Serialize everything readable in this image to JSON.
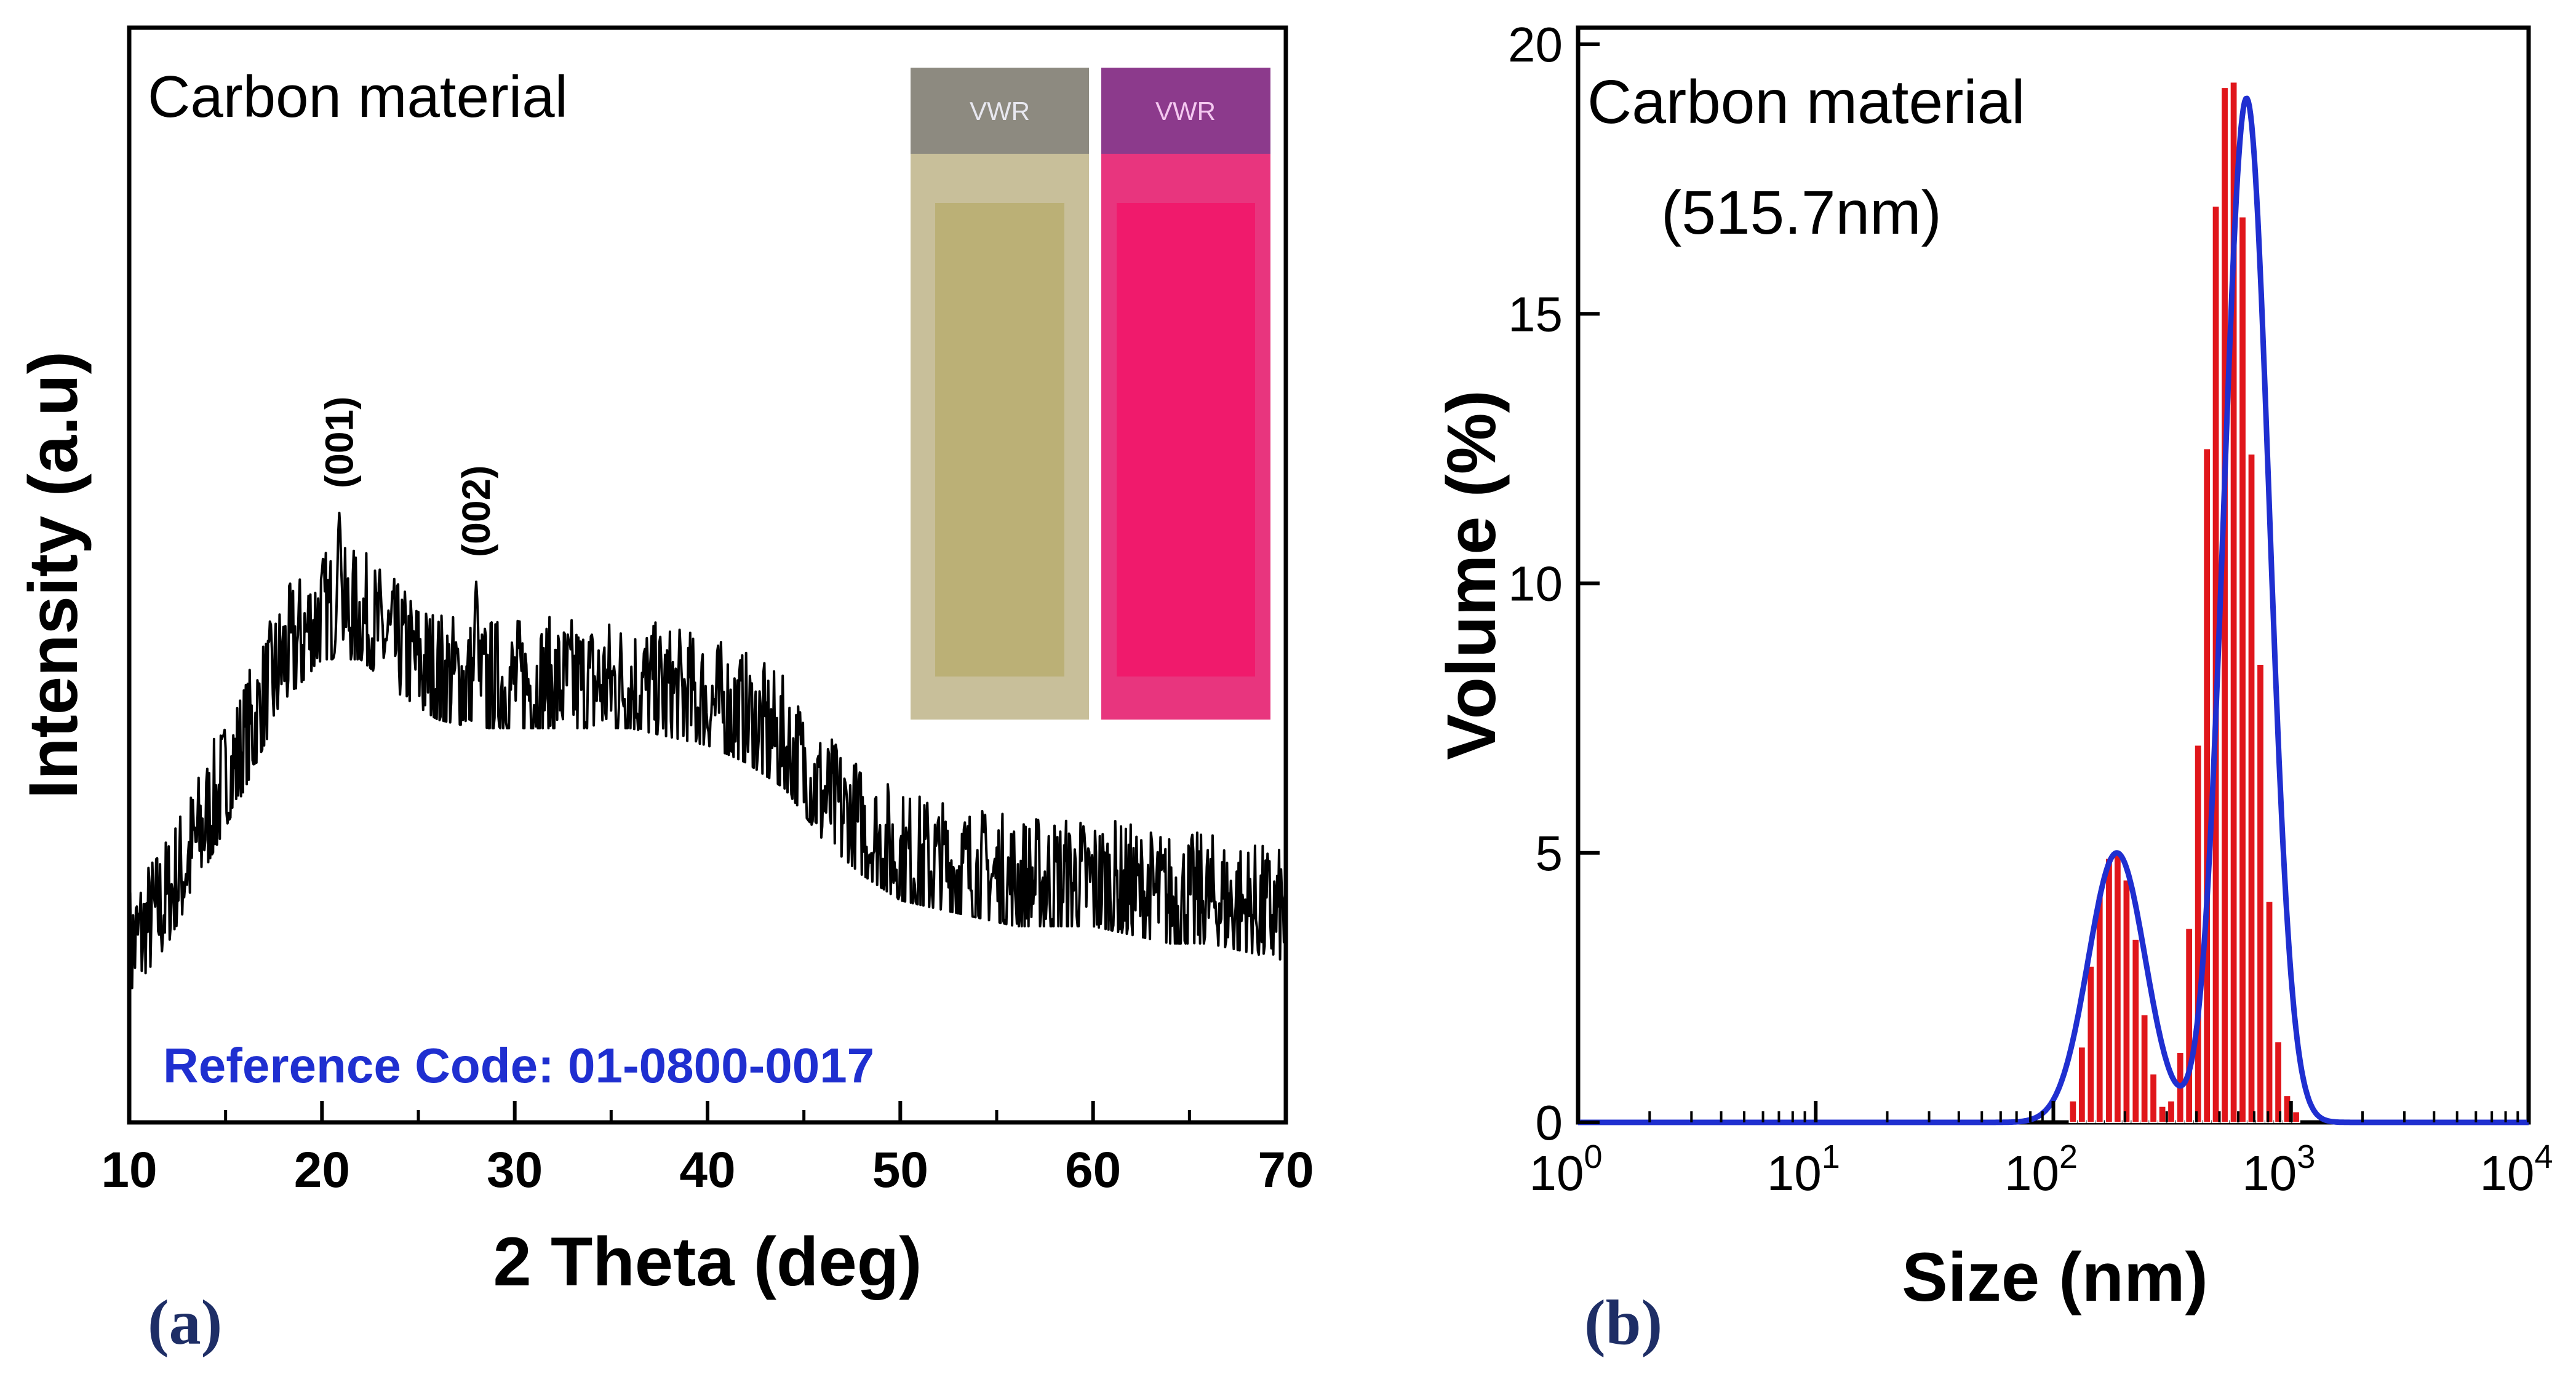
{
  "chart_data": [
    {
      "type": "line",
      "panel_label": "(a)",
      "title": "Carbon material",
      "xlabel": "2 Theta (deg)",
      "ylabel": "Intensity (a.u)",
      "xlim": [
        10,
        70
      ],
      "ylim": [
        0,
        1
      ],
      "xticks": [
        "10",
        "20",
        "30",
        "40",
        "50",
        "60",
        "70"
      ],
      "reference_code": "Reference Code: 01-0800-0017",
      "peaks": [
        {
          "label": "(001)",
          "x": 20.9,
          "y": 0.69
        },
        {
          "label": "(002)",
          "x": 28.0,
          "y": 0.61
        }
      ],
      "series": [
        {
          "name": "XRD pattern",
          "x": [
            10,
            12,
            14,
            16,
            18,
            20,
            22,
            24,
            26,
            28,
            30,
            32,
            34,
            36,
            38,
            40,
            42,
            44,
            46,
            48,
            50,
            52,
            54,
            56,
            58,
            60,
            62,
            64,
            66,
            68,
            70
          ],
          "values": [
            0.18,
            0.24,
            0.33,
            0.42,
            0.52,
            0.57,
            0.57,
            0.53,
            0.5,
            0.49,
            0.49,
            0.49,
            0.49,
            0.49,
            0.48,
            0.47,
            0.45,
            0.42,
            0.36,
            0.32,
            0.29,
            0.28,
            0.27,
            0.26,
            0.26,
            0.26,
            0.25,
            0.24,
            0.24,
            0.23,
            0.22
          ]
        }
      ],
      "inset": {
        "description": "cuvette photographs",
        "left_label": "VWR",
        "right_label": "VWR"
      }
    },
    {
      "type": "bar",
      "panel_label": "(b)",
      "title": "Carbon material",
      "subtitle": "(515.7nm)",
      "xlabel": "Size (nm)",
      "ylabel": "Volume (%)",
      "xscale": "log",
      "xlim": [
        1,
        10000
      ],
      "ylim": [
        0,
        20
      ],
      "xticks": [
        {
          "base": "10",
          "exp": "0"
        },
        {
          "base": "10",
          "exp": "1"
        },
        {
          "base": "10",
          "exp": "2"
        },
        {
          "base": "10",
          "exp": "3"
        },
        {
          "base": "10",
          "exp": "4"
        }
      ],
      "yticks": [
        "0",
        "5",
        "10",
        "15",
        "20"
      ],
      "bar_color": "#e0161b",
      "fit_color": "#1f2fd0",
      "bars": {
        "size_nm": [
          122,
          133,
          145,
          158,
          173,
          188,
          205,
          224,
          244,
          266,
          290,
          316,
          345,
          376,
          410,
          447,
          487,
          531,
          579,
          631,
          688,
          750,
          818,
          892,
          972,
          1060
        ],
        "values": [
          0.4,
          1.4,
          2.9,
          4.2,
          4.9,
          5.0,
          4.5,
          3.4,
          2.0,
          0.9,
          0.3,
          0.4,
          1.3,
          3.6,
          7.0,
          12.5,
          17.0,
          19.2,
          19.3,
          16.8,
          12.4,
          8.5,
          4.1,
          1.5,
          0.5,
          0.2
        ]
      },
      "fit": {
        "peak1": {
          "center_nm": 185,
          "height": 5.0
        },
        "peak2": {
          "center_nm": 650,
          "height": 19.0
        }
      }
    }
  ]
}
